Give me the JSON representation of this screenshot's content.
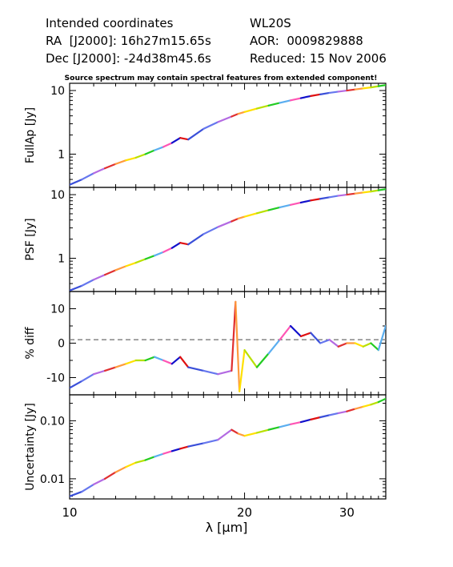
{
  "header": {
    "line1_left": "Intended coordinates",
    "line1_right": "WL20S",
    "line2_left": "RA  [J2000]: 16h27m15.65s",
    "line2_right": "AOR:  0009829888",
    "line3_left": "Dec [J2000]: -24d38m45.6s",
    "line3_right": "Reduced: 15 Nov 2006"
  },
  "note": "Source spectrum may contain spectral features from extended component!",
  "chart_data": [
    {
      "type": "line",
      "panel": "FullAp",
      "ylabel": "FullAp [Jy]",
      "yscale": "log",
      "ylim": [
        0.3,
        13
      ],
      "yticks": [
        1,
        10
      ],
      "ytick_labels": [
        "1",
        "10"
      ],
      "x": [
        10,
        10.5,
        11,
        11.5,
        12,
        12.5,
        13,
        13.5,
        14,
        14.5,
        15,
        15.5,
        16,
        17,
        18,
        19,
        19.5,
        20,
        21,
        22,
        23,
        24,
        25,
        26,
        27,
        28,
        29,
        30,
        31,
        32,
        33,
        34,
        35
      ],
      "y": [
        0.33,
        0.4,
        0.5,
        0.6,
        0.7,
        0.8,
        0.88,
        1.0,
        1.15,
        1.3,
        1.5,
        1.8,
        1.7,
        2.5,
        3.2,
        3.9,
        4.3,
        4.6,
        5.2,
        5.8,
        6.4,
        7.0,
        7.6,
        8.2,
        8.7,
        9.2,
        9.6,
        10.0,
        10.4,
        10.8,
        11.2,
        11.7,
        12.2
      ]
    },
    {
      "type": "line",
      "panel": "PSF",
      "ylabel": "PSF [Jy]",
      "yscale": "log",
      "ylim": [
        0.3,
        13
      ],
      "yticks": [
        1,
        10
      ],
      "ytick_labels": [
        "1",
        "10"
      ],
      "x": [
        10,
        10.5,
        11,
        11.5,
        12,
        12.5,
        13,
        13.5,
        14,
        14.5,
        15,
        15.5,
        16,
        17,
        18,
        19,
        19.5,
        20,
        21,
        22,
        23,
        24,
        25,
        26,
        27,
        28,
        29,
        30,
        31,
        32,
        33,
        34,
        35
      ],
      "y": [
        0.31,
        0.37,
        0.46,
        0.55,
        0.65,
        0.75,
        0.85,
        0.97,
        1.1,
        1.25,
        1.45,
        1.75,
        1.65,
        2.4,
        3.1,
        3.8,
        4.2,
        4.5,
        5.1,
        5.7,
        6.3,
        6.9,
        7.5,
        8.1,
        8.6,
        9.1,
        9.6,
        10.0,
        10.4,
        10.8,
        11.2,
        11.7,
        12.2
      ]
    },
    {
      "type": "line",
      "panel": "% diff",
      "ylabel": "% diff",
      "yscale": "linear",
      "ylim": [
        -15,
        15
      ],
      "yticks": [
        -10,
        0,
        10
      ],
      "ytick_labels": [
        "-10",
        "0",
        "10"
      ],
      "reference_line": 1,
      "x": [
        10,
        10.5,
        11,
        11.5,
        12,
        12.5,
        13,
        13.5,
        14,
        14.5,
        15,
        15.5,
        16,
        17,
        18,
        19,
        19.3,
        19.6,
        20,
        21,
        22,
        23,
        24,
        25,
        26,
        27,
        28,
        29,
        30,
        31,
        32,
        33,
        34,
        35
      ],
      "y": [
        -13,
        -11,
        -9,
        -8,
        -7,
        -6,
        -5,
        -5,
        -4,
        -5,
        -6,
        -4,
        -7,
        -8,
        -9,
        -8,
        12,
        -14,
        -2,
        -7,
        -3,
        1,
        5,
        2,
        3,
        0,
        1,
        -1,
        0,
        0,
        -1,
        0,
        -2,
        5
      ]
    },
    {
      "type": "line",
      "panel": "Uncertainty",
      "ylabel": "Uncertainty [Jy]",
      "yscale": "log",
      "ylim": [
        0.0045,
        0.28
      ],
      "yticks": [
        0.01,
        0.1
      ],
      "ytick_labels": [
        "0.01",
        "0.10"
      ],
      "x": [
        10,
        10.5,
        11,
        11.5,
        12,
        12.5,
        13,
        13.5,
        14,
        14.5,
        15,
        15.5,
        16,
        17,
        18,
        19,
        19.5,
        20,
        21,
        22,
        23,
        24,
        25,
        26,
        27,
        28,
        29,
        30,
        31,
        32,
        33,
        34,
        35
      ],
      "y": [
        0.005,
        0.006,
        0.008,
        0.01,
        0.013,
        0.016,
        0.019,
        0.021,
        0.024,
        0.027,
        0.03,
        0.033,
        0.036,
        0.041,
        0.047,
        0.07,
        0.06,
        0.055,
        0.062,
        0.07,
        0.078,
        0.087,
        0.095,
        0.105,
        0.115,
        0.125,
        0.135,
        0.145,
        0.16,
        0.175,
        0.19,
        0.21,
        0.24
      ]
    }
  ],
  "xaxis": {
    "label": "λ [μm]",
    "scale": "log",
    "xlim": [
      10,
      35
    ],
    "ticks": [
      10,
      20,
      30
    ],
    "tick_labels": [
      "10",
      "20",
      "30"
    ]
  },
  "segment_colors": [
    "#3a4fd9",
    "#6677ee",
    "#b36ae2",
    "#e03030",
    "#ff9a3c",
    "#ffe000",
    "#b8e000",
    "#22cc22",
    "#5aaef0",
    "#ff55b4",
    "#1010cc",
    "#e01010"
  ]
}
